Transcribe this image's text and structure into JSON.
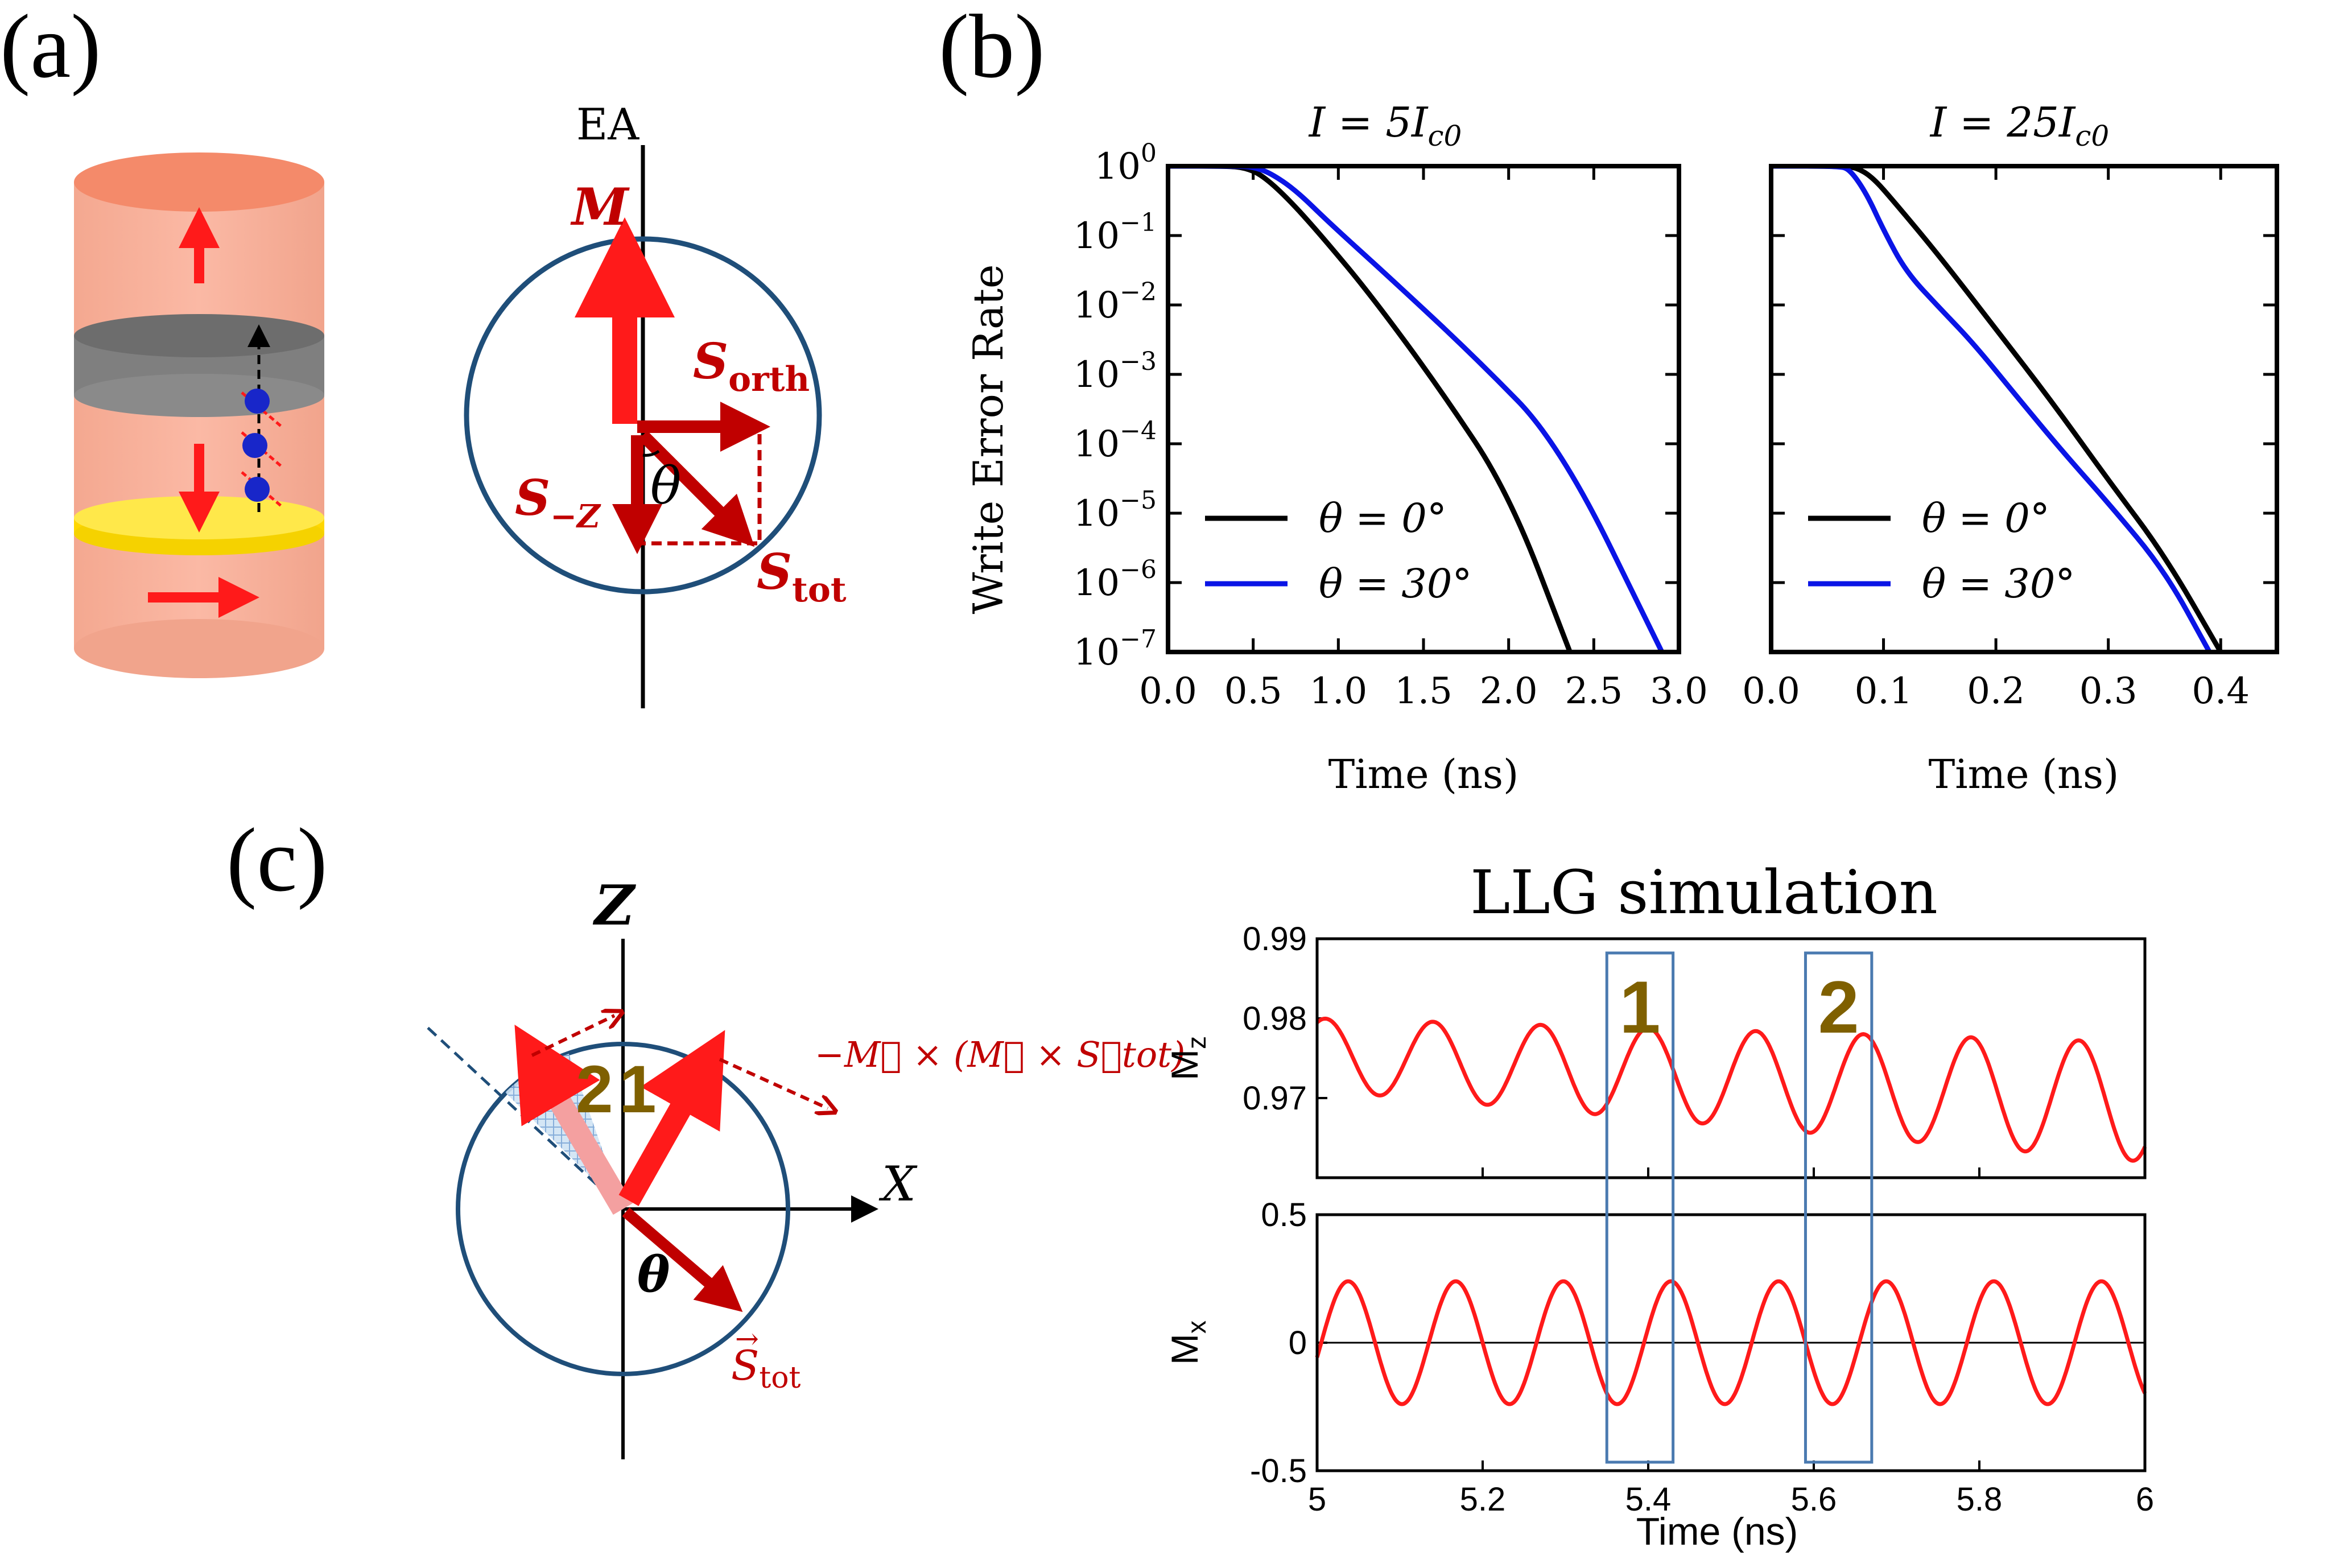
{
  "panels": {
    "a": {
      "label": "(a)",
      "ea_label": "EA",
      "m_label": "M",
      "s_orth_main": "S",
      "s_orth_sub": "orth",
      "s_z_main": "S",
      "s_z_sub": "−Z",
      "s_tot_main": "S",
      "s_tot_sub": "tot",
      "theta": "θ"
    },
    "b": {
      "label": "(b)"
    },
    "c": {
      "label": "(c)",
      "z_axis": "Z",
      "x_axis": "X",
      "theta": "θ",
      "s_tot_main": "S",
      "s_tot_sub": "tot",
      "torque_formula": "−M⃗ × (M⃗ × S⃗tot)",
      "num1": "1",
      "num2": "2",
      "box1": "1",
      "box2": "2"
    }
  },
  "colors": {
    "red": "#ff1a1a",
    "dark_red": "#c00000",
    "blue_line": "#0a14e6",
    "circle": "#1f4e79",
    "olive": "#7f6000",
    "box": "#4a7ab0"
  },
  "chart_data": [
    {
      "type": "line",
      "title": "I = 5I_c0",
      "title_parts": [
        "I = 5I",
        "c0"
      ],
      "xlabel": "Time (ns)",
      "ylabel": "Write Error Rate",
      "xlim": [
        0,
        3.0
      ],
      "ylim": [
        1e-07,
        1
      ],
      "yscale": "log",
      "x_ticks": [
        "0.0",
        "0.5",
        "1.0",
        "1.5",
        "2.0",
        "2.5",
        "3.0"
      ],
      "y_ticks": [
        "10^0",
        "10^-1",
        "10^-2",
        "10^-3",
        "10^-4",
        "10^-5",
        "10^-6",
        "10^-7"
      ],
      "legend_position": "lower-left",
      "series": [
        {
          "name": "θ = 0°",
          "color": "#000000",
          "x": [
            0,
            0.35,
            0.45,
            0.55,
            0.7,
            0.9,
            1.2,
            1.6,
            2.0,
            2.36
          ],
          "y": [
            1,
            1,
            0.95,
            0.75,
            0.35,
            0.1,
            0.013,
            0.0006,
            2e-05,
            1e-07
          ]
        },
        {
          "name": "θ = 30°",
          "color": "#0a14e6",
          "x": [
            0,
            0.4,
            0.5,
            0.6,
            0.75,
            0.95,
            1.3,
            1.8,
            2.3,
            2.9
          ],
          "y": [
            1,
            1,
            0.97,
            0.8,
            0.45,
            0.15,
            0.025,
            0.0018,
            0.0001,
            1e-07
          ]
        }
      ]
    },
    {
      "type": "line",
      "title": "I = 25I_c0",
      "title_parts": [
        "I = 25I",
        "c0"
      ],
      "xlabel": "Time (ns)",
      "xlim": [
        0,
        0.45
      ],
      "ylim": [
        1e-07,
        1
      ],
      "yscale": "log",
      "x_ticks": [
        "0.0",
        "0.1",
        "0.2",
        "0.3",
        "0.4"
      ],
      "legend_position": "lower-left",
      "series": [
        {
          "name": "θ = 0°",
          "color": "#000000",
          "x": [
            0,
            0.06,
            0.075,
            0.09,
            0.11,
            0.15,
            0.2,
            0.25,
            0.3,
            0.35,
            0.4
          ],
          "y": [
            1,
            1,
            0.97,
            0.7,
            0.3,
            0.05,
            0.0045,
            0.0004,
            3e-05,
            2.5e-06,
            1e-07
          ]
        },
        {
          "name": "θ = 30°",
          "color": "#0a14e6",
          "x": [
            0,
            0.06,
            0.07,
            0.085,
            0.1,
            0.12,
            0.15,
            0.18,
            0.22,
            0.26,
            0.3,
            0.35,
            0.39
          ],
          "y": [
            1,
            1,
            0.9,
            0.4,
            0.12,
            0.03,
            0.009,
            0.0028,
            0.00045,
            7.5e-05,
            1.4e-05,
            1.5e-06,
            1e-07
          ]
        }
      ]
    },
    {
      "type": "line",
      "title": "LLG simulation",
      "ylabel": "M_z",
      "ylabel_parts": [
        "M",
        "z"
      ],
      "xlim": [
        5,
        6
      ],
      "ylim": [
        0.96,
        0.99
      ],
      "y_ticks": [
        "0.99",
        "0.98",
        "0.97"
      ],
      "series": [
        {
          "name": "M_z",
          "color": "#ff1a1a",
          "oscillation": {
            "period": 0.13,
            "mean_start": 0.9755,
            "mean_end": 0.9695,
            "amp_start": 0.0045,
            "amp_end": 0.0075,
            "phase_peak_at": 5.01
          }
        }
      ],
      "annotations": [
        {
          "text": "1",
          "x_range": [
            5.35,
            5.43
          ]
        },
        {
          "text": "2",
          "x_range": [
            5.59,
            5.67
          ]
        }
      ]
    },
    {
      "type": "line",
      "xlabel": "Time (ns)",
      "ylabel": "M_x",
      "ylabel_parts": [
        "M",
        "x"
      ],
      "xlim": [
        5,
        6
      ],
      "ylim": [
        -0.5,
        0.5
      ],
      "x_ticks": [
        "5",
        "5.2",
        "5.4",
        "5.6",
        "5.8",
        "6"
      ],
      "y_ticks": [
        "0.5",
        "0",
        "-0.5"
      ],
      "series": [
        {
          "name": "M_x",
          "color": "#ff1a1a",
          "oscillation": {
            "period": 0.13,
            "amplitude": 0.24,
            "zero_up_at": 5.005
          }
        }
      ]
    }
  ]
}
